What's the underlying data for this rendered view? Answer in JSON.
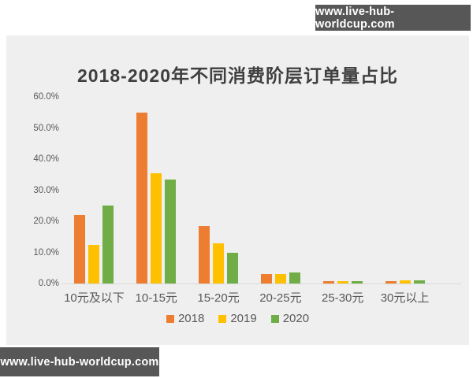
{
  "watermarks": {
    "top": "www.live-hub-worldcup.com",
    "bottom": "www.live-hub-worldcup.com"
  },
  "chart_data": {
    "type": "bar",
    "title": "2018-2020年不同消费阶层订单量占比",
    "categories": [
      "10元及以下",
      "10-15元",
      "15-20元",
      "20-25元",
      "25-30元",
      "30元以上"
    ],
    "series": [
      {
        "name": "2018",
        "color": "#ED7D31",
        "values": [
          22,
          55,
          18.5,
          3,
          0.8,
          0.7
        ]
      },
      {
        "name": "2019",
        "color": "#FFC000",
        "values": [
          12.5,
          35.5,
          13,
          3,
          0.8,
          1.0
        ]
      },
      {
        "name": "2020",
        "color": "#70AD47",
        "values": [
          25,
          33.5,
          10,
          3.5,
          0.7,
          0.9
        ]
      }
    ],
    "ylim": [
      0,
      60
    ],
    "ytick_labels": [
      "60.0%",
      "50.0%",
      "40.0%",
      "30.0%",
      "20.0%",
      "10.0%",
      "0.0%"
    ],
    "grid": false,
    "legend_position": "bottom",
    "panel_background": "#efefef",
    "axis_line_color": "#d9d9d9",
    "text_color": "#595959"
  }
}
